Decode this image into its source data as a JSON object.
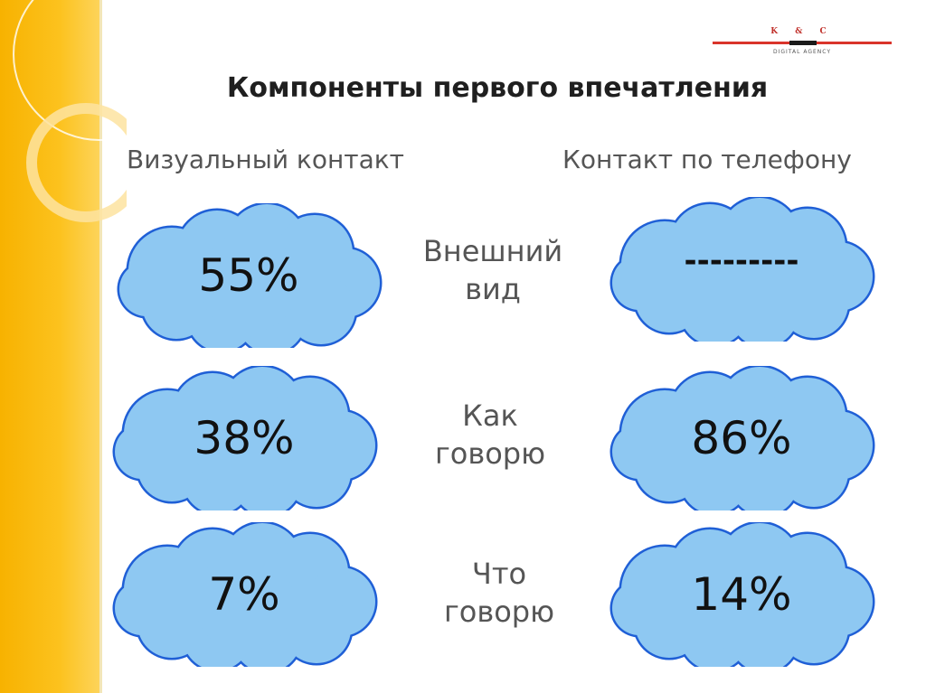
{
  "logo": {
    "letters": "K & C",
    "tagline": "DIGITAL AGENCY"
  },
  "title": "Компоненты первого впечатления",
  "columns": {
    "left": "Визуальный контакт",
    "right": "Контакт по телефону"
  },
  "rows": [
    {
      "label_line1": "Внешний",
      "label_line2": "вид",
      "visual": "55%",
      "phone": "---------"
    },
    {
      "label_line1": "Как",
      "label_line2": "говорю",
      "visual": "38%",
      "phone": "86%"
    },
    {
      "label_line1": "Что",
      "label_line2": "говорю",
      "visual": "7%",
      "phone": "14%"
    }
  ],
  "colors": {
    "stripe": "#fcc21e",
    "cloud_fill": "#8ec8f2",
    "cloud_stroke": "#1f5fd6"
  }
}
